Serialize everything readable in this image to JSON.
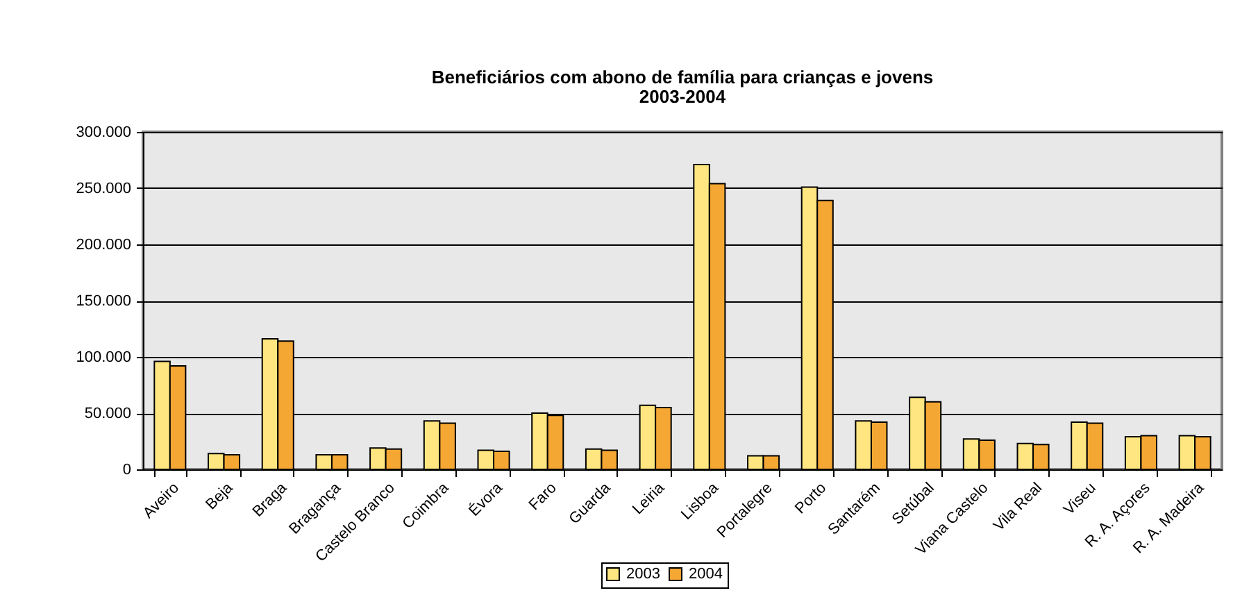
{
  "chart_data": {
    "type": "bar",
    "title": "Beneficiários com abono de família para crianças e jovens",
    "subtitle": "2003-2004",
    "categories": [
      "Aveiro",
      "Beja",
      "Braga",
      "Bragança",
      "Castelo Branco",
      "Coimbra",
      "Évora",
      "Faro",
      "Guarda",
      "Leiria",
      "Lisboa",
      "Portalegre",
      "Porto",
      "Santarém",
      "Setúbal",
      "Viana Castelo",
      "Vila Real",
      "Viseu",
      "R. A. Açores",
      "R. A. Madeira"
    ],
    "series": [
      {
        "name": "2003",
        "color": "#ffe680",
        "values": [
          96000,
          14000,
          116000,
          13000,
          19000,
          43000,
          17000,
          50000,
          18000,
          57000,
          271000,
          12000,
          251000,
          43000,
          64000,
          27000,
          23000,
          42000,
          29000,
          30000
        ]
      },
      {
        "name": "2004",
        "color": "#f5a733",
        "values": [
          92000,
          13000,
          114000,
          13000,
          18000,
          41000,
          16000,
          48000,
          17000,
          55000,
          254000,
          12000,
          239000,
          42000,
          60000,
          26000,
          22000,
          41000,
          30000,
          29000
        ]
      }
    ],
    "ylim": [
      0,
      300000
    ],
    "yticks": [
      {
        "value": 0,
        "label": "0"
      },
      {
        "value": 50000,
        "label": "50.000"
      },
      {
        "value": 100000,
        "label": "100.000"
      },
      {
        "value": 150000,
        "label": "150.000"
      },
      {
        "value": 200000,
        "label": "200.000"
      },
      {
        "value": 250000,
        "label": "250.000"
      },
      {
        "value": 300000,
        "label": "300.000"
      }
    ],
    "grid": "y",
    "legend": "bottom"
  }
}
